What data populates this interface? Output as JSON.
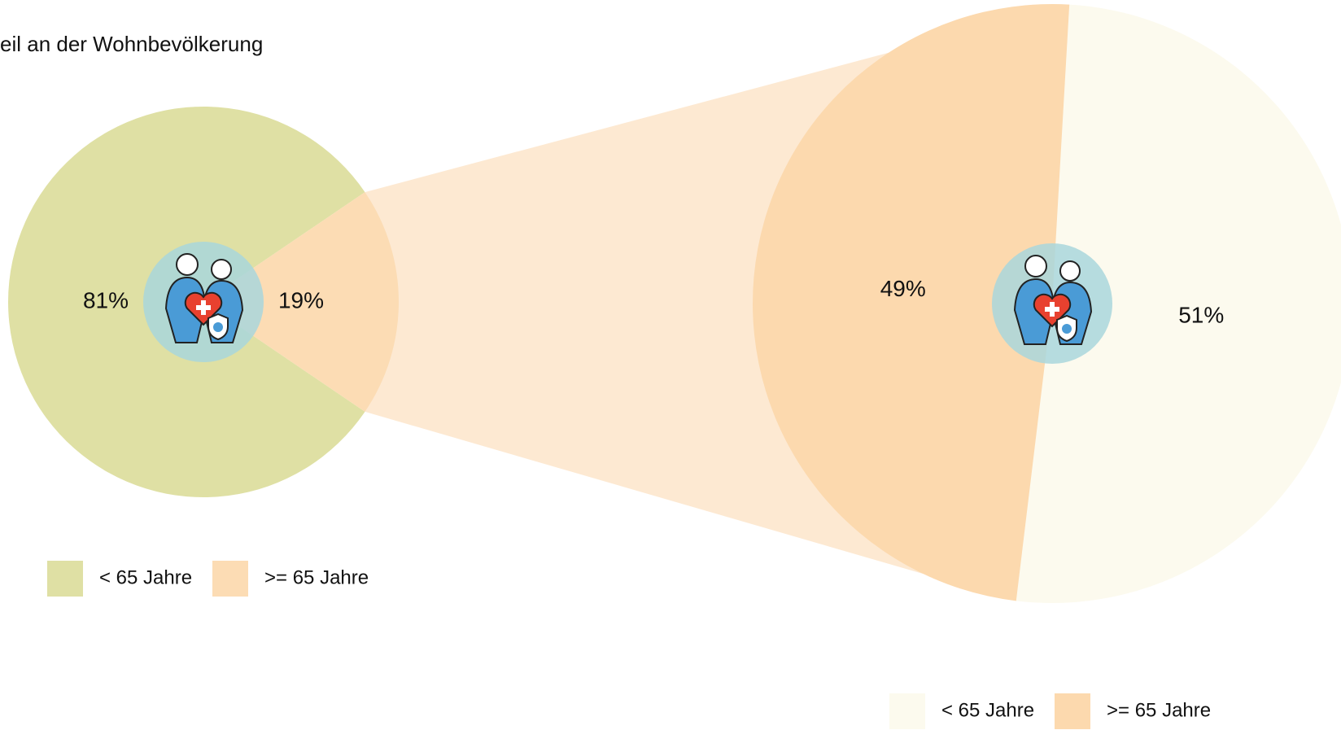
{
  "chart_data": [
    {
      "type": "pie",
      "title": "eil an der Wohnbevölkerung",
      "categories": [
        "< 65 Jahre",
        ">= 65 Jahre"
      ],
      "values": [
        81,
        19
      ],
      "value_labels": [
        "81%",
        "19%"
      ],
      "colors": [
        "#dfe0a4",
        "#fcdcb4"
      ]
    },
    {
      "type": "pie",
      "categories": [
        "< 65 Jahre",
        ">= 65 Jahre"
      ],
      "values": [
        51,
        49
      ],
      "value_labels": [
        "51%",
        "49%"
      ],
      "colors": [
        "#fcfaee",
        "#fcd9ae"
      ]
    }
  ]
}
